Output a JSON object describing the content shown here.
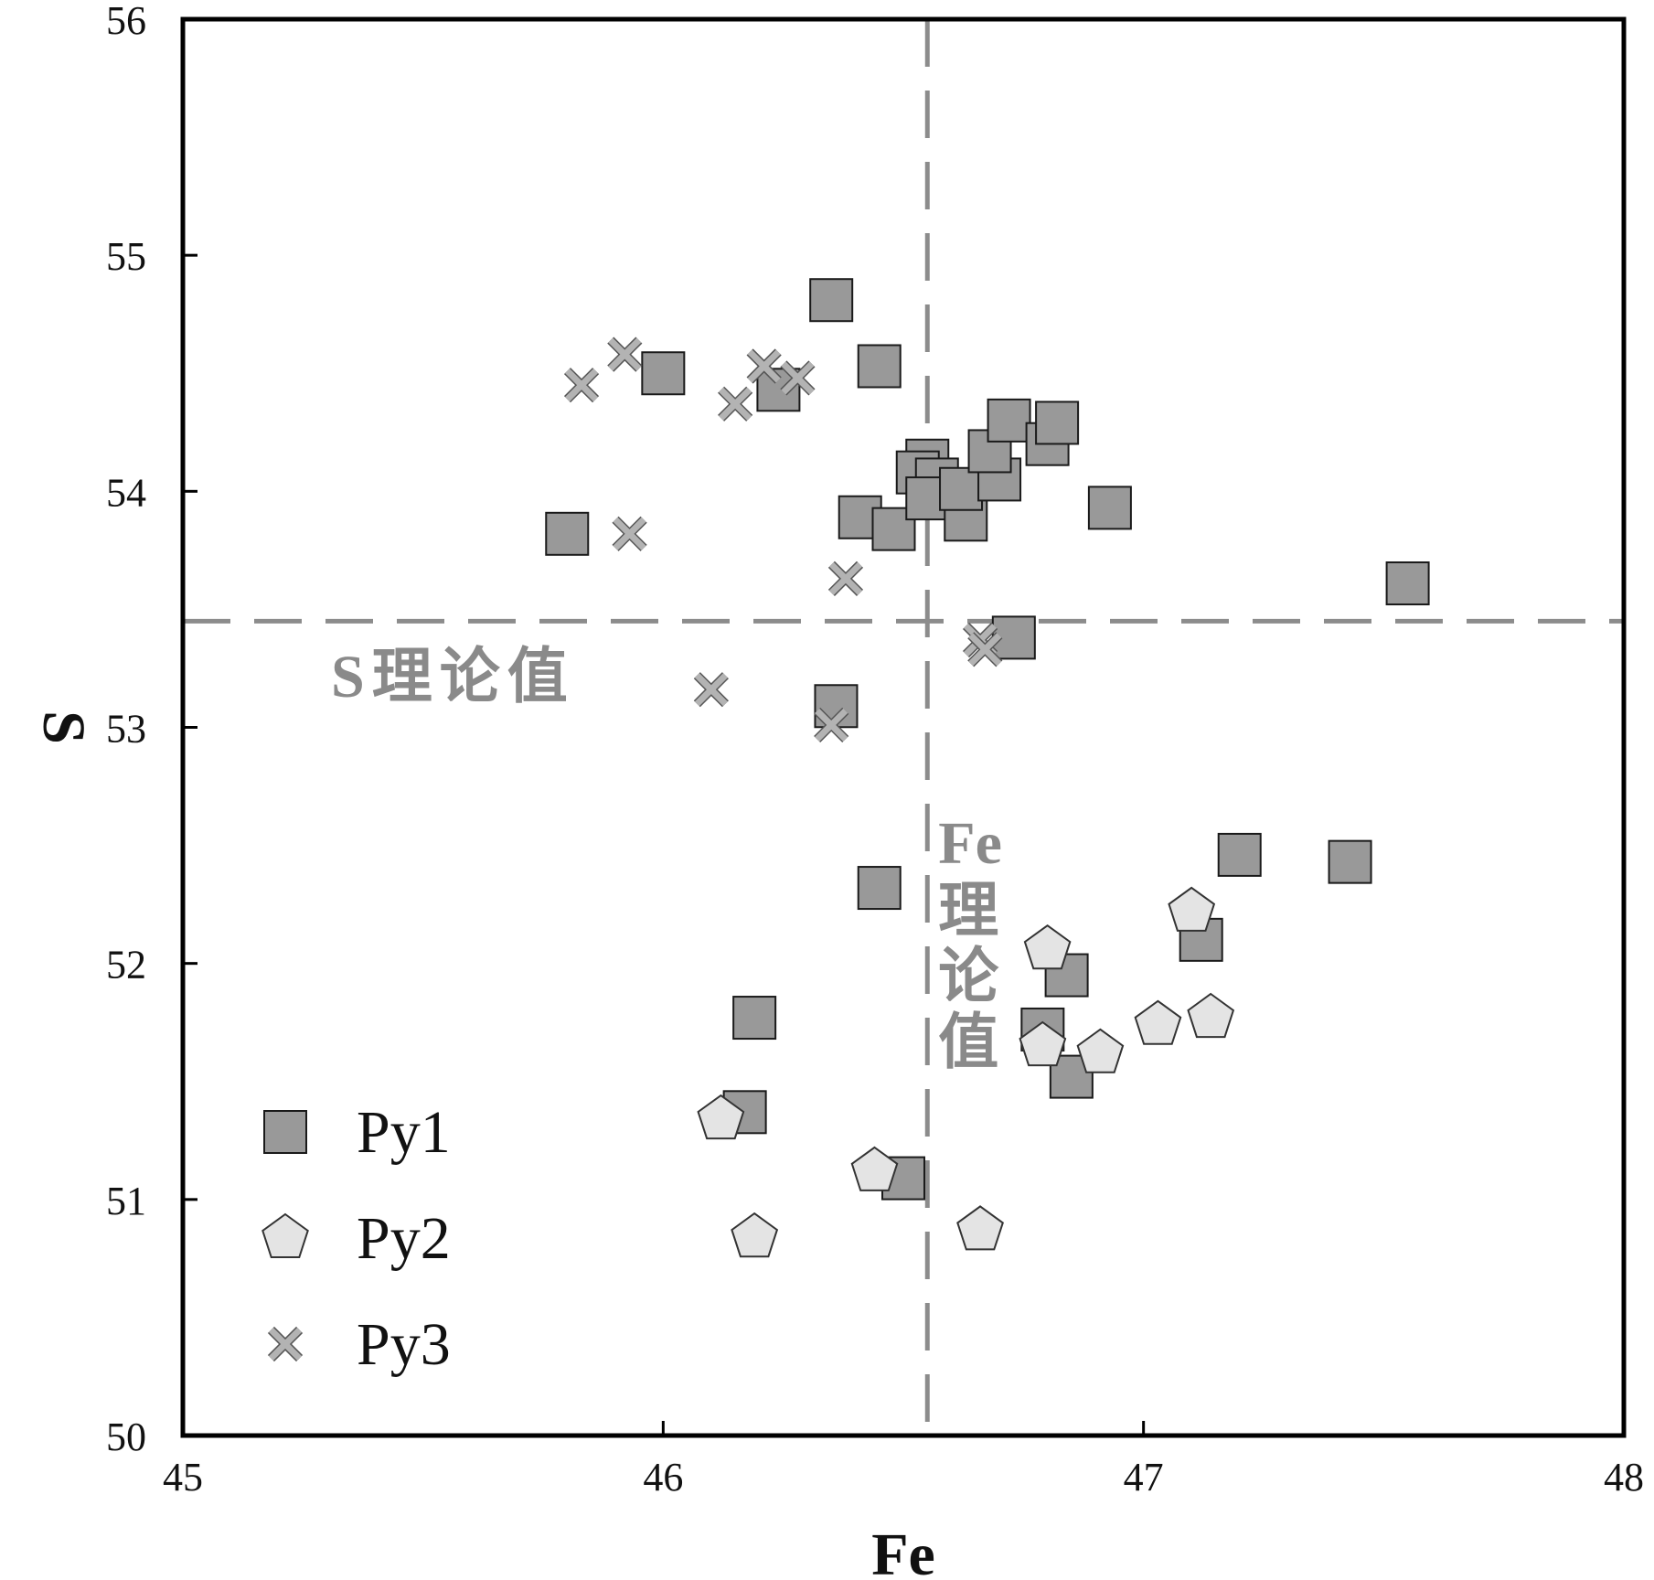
{
  "chart_data": {
    "type": "scatter",
    "xlabel": "Fe",
    "ylabel": "S",
    "xlim": [
      45,
      48
    ],
    "ylim": [
      50,
      56
    ],
    "xticks": [
      45,
      46,
      47,
      48
    ],
    "yticks": [
      50,
      51,
      52,
      53,
      54,
      55,
      56
    ],
    "grid": false,
    "legend_position": "bottom-left",
    "reference_lines": [
      {
        "axis": "x",
        "value": 46.55,
        "label": "Fe理论值"
      },
      {
        "axis": "y",
        "value": 53.45,
        "label": "S理论值"
      }
    ],
    "series": [
      {
        "name": "Py1",
        "marker": "square",
        "color": "#999999",
        "points": [
          [
            46.35,
            54.81
          ],
          [
            46.0,
            54.5
          ],
          [
            46.24,
            54.43
          ],
          [
            46.45,
            54.53
          ],
          [
            45.8,
            53.82
          ],
          [
            46.41,
            53.89
          ],
          [
            46.48,
            53.84
          ],
          [
            46.55,
            54.13
          ],
          [
            46.53,
            54.08
          ],
          [
            46.57,
            54.05
          ],
          [
            46.55,
            53.97
          ],
          [
            46.63,
            53.88
          ],
          [
            46.62,
            54.01
          ],
          [
            46.7,
            54.05
          ],
          [
            46.68,
            54.17
          ],
          [
            46.72,
            54.3
          ],
          [
            46.8,
            54.2
          ],
          [
            46.82,
            54.29
          ],
          [
            46.93,
            53.93
          ],
          [
            47.55,
            53.61
          ],
          [
            46.73,
            53.38
          ],
          [
            46.36,
            53.09
          ],
          [
            46.45,
            52.32
          ],
          [
            47.2,
            52.46
          ],
          [
            47.43,
            52.43
          ],
          [
            47.12,
            52.1
          ],
          [
            46.84,
            51.95
          ],
          [
            46.19,
            51.77
          ],
          [
            46.79,
            51.72
          ],
          [
            46.85,
            51.52
          ],
          [
            46.17,
            51.37
          ],
          [
            46.5,
            51.09
          ]
        ]
      },
      {
        "name": "Py2",
        "marker": "pentagon",
        "color": "#e4e4e4",
        "points": [
          [
            47.1,
            52.22
          ],
          [
            46.8,
            52.06
          ],
          [
            47.03,
            51.74
          ],
          [
            47.14,
            51.77
          ],
          [
            46.79,
            51.65
          ],
          [
            46.91,
            51.62
          ],
          [
            46.12,
            51.34
          ],
          [
            46.44,
            51.12
          ],
          [
            46.19,
            50.84
          ],
          [
            46.66,
            50.87
          ]
        ]
      },
      {
        "name": "Py3",
        "marker": "cross",
        "color": "#b3b3b3",
        "points": [
          [
            45.83,
            54.45
          ],
          [
            45.92,
            54.58
          ],
          [
            46.15,
            54.37
          ],
          [
            46.21,
            54.53
          ],
          [
            46.28,
            54.48
          ],
          [
            45.93,
            53.82
          ],
          [
            46.38,
            53.63
          ],
          [
            46.1,
            53.16
          ],
          [
            46.35,
            53.01
          ],
          [
            46.66,
            53.37
          ],
          [
            46.67,
            53.33
          ]
        ]
      }
    ]
  }
}
